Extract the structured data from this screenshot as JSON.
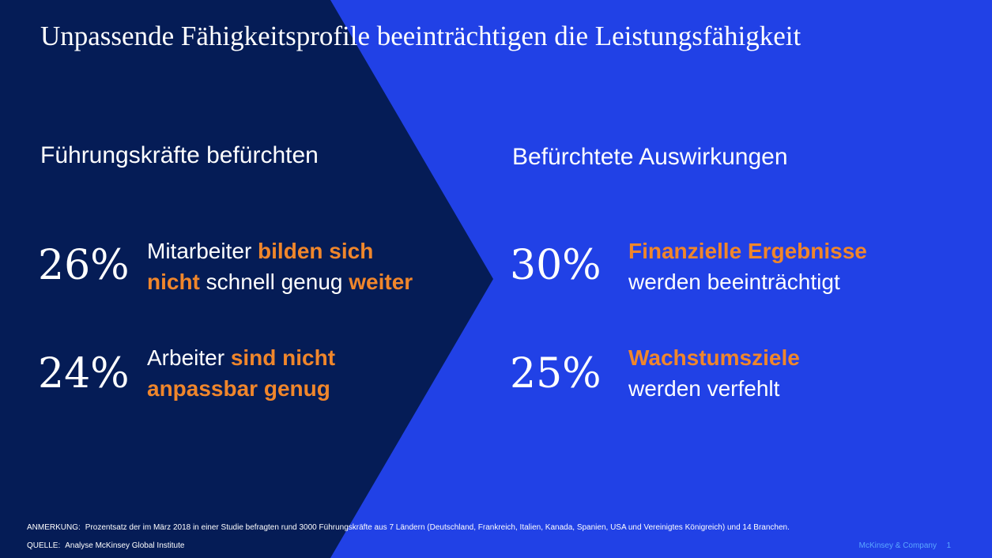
{
  "slide": {
    "title": "Unpassende Fähigkeitsprofile beeinträchtigen die Leistungsfähigkeit",
    "colors": {
      "dark_navy": "#051c56",
      "bright_blue": "#2141e6",
      "highlight_orange": "#f0862b",
      "brand_text": "#5aa6ff"
    }
  },
  "left": {
    "heading": "Führungskräfte befürchten",
    "items": [
      {
        "percent": "26%",
        "line1_plain": "Mitarbeiter ",
        "line1_hl": "bilden sich",
        "line2_hl_a": "nicht",
        "line2_plain": " schnell genug ",
        "line2_hl_b": "weiter"
      },
      {
        "percent": "24%",
        "line1_plain": "Arbeiter ",
        "line1_hl": "sind nicht",
        "line2_hl": "anpassbar genug"
      }
    ]
  },
  "right": {
    "heading": "Befürchtete Auswirkungen",
    "items": [
      {
        "percent": "30%",
        "line1_hl": "Finanzielle Ergebnisse",
        "line2_plain": "werden beeinträchtigt"
      },
      {
        "percent": "25%",
        "line1_hl": "Wachstumsziele",
        "line2_plain": "werden verfehlt"
      }
    ]
  },
  "footer": {
    "note_label": "ANMERKUNG:",
    "note_text": "Prozentsatz der im März 2018 in einer Studie befragten rund 3000 Führungskräfte aus 7 Ländern (Deutschland, Frankreich, Italien, Kanada, Spanien, USA und Vereinigtes Königreich) und 14 Branchen.",
    "source_label": "QUELLE:",
    "source_text": "Analyse McKinsey Global Institute",
    "brand": "McKinsey & Company",
    "page_number": "1"
  }
}
